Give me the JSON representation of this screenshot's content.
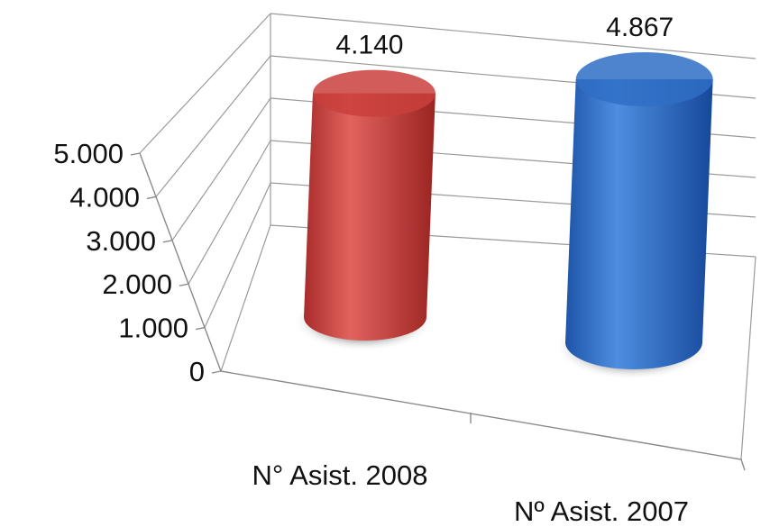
{
  "chart_data": {
    "type": "bar",
    "style": "3d-cylinder",
    "categories": [
      "N° Asist. 2008",
      "Nº Asist. 2007"
    ],
    "values": [
      4140,
      4867
    ],
    "value_labels": [
      "4.140",
      "4.867"
    ],
    "colors": [
      "#c9403c",
      "#2f6fc4"
    ],
    "ylim": [
      0,
      5000
    ],
    "y_ticks": [
      0,
      1000,
      2000,
      3000,
      4000,
      5000
    ],
    "y_tick_labels": [
      "0",
      "1.000",
      "2.000",
      "3.000",
      "4.000",
      "5.000"
    ],
    "grid": true,
    "legend": "none",
    "title": "",
    "xlabel": "",
    "ylabel": ""
  }
}
